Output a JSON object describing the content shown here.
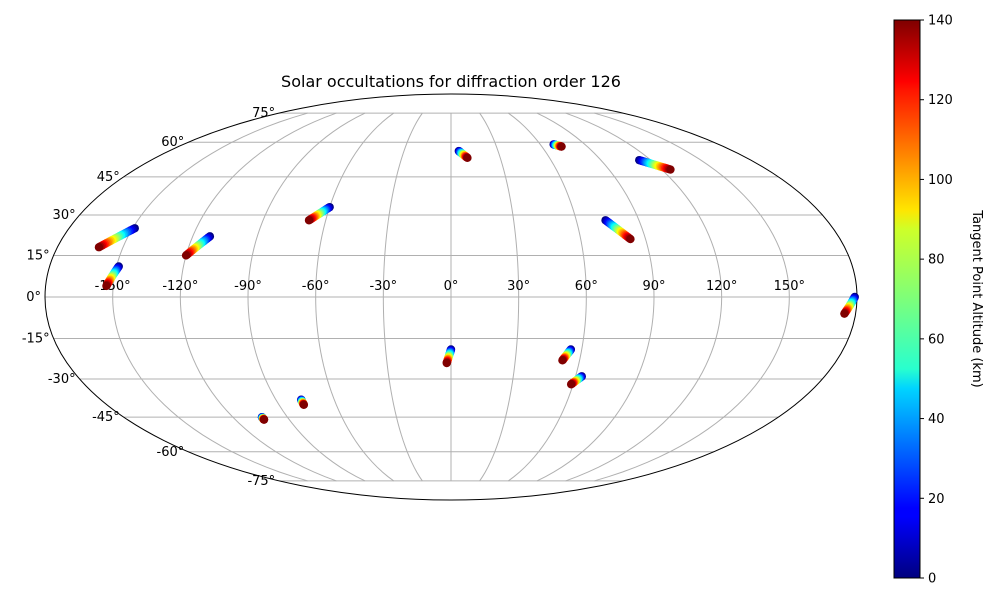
{
  "chart_data": {
    "type": "scatter",
    "projection": "mollweide",
    "title": "Solar occultations for diffraction order 126",
    "xlabel": "",
    "ylabel": "",
    "grid": true,
    "x_tick_labels": [
      "-150°",
      "-120°",
      "-90°",
      "-60°",
      "-30°",
      "0°",
      "30°",
      "60°",
      "90°",
      "120°",
      "150°"
    ],
    "y_tick_labels": [
      "-75°",
      "-60°",
      "-45°",
      "-30°",
      "-15°",
      "0°",
      "15°",
      "30°",
      "45°",
      "60°",
      "75°"
    ],
    "colorbar": {
      "label": "Tangent Point Altitude (km)",
      "colormap": "jet",
      "range": [
        0,
        140
      ],
      "ticks": [
        "0",
        "20",
        "40",
        "60",
        "80",
        "100",
        "120",
        "140"
      ]
    },
    "tracks": [
      {
        "lon_start": -149,
        "lat_start": 25,
        "lon_end": -161,
        "lat_end": 18,
        "alt_range": [
          0,
          140
        ]
      },
      {
        "lon_start": -149,
        "lat_start": 11,
        "lon_end": -153,
        "lat_end": 4,
        "alt_range": [
          0,
          140
        ]
      },
      {
        "lon_start": -112,
        "lat_start": 22,
        "lon_end": -120,
        "lat_end": 15,
        "alt_range": [
          0,
          140
        ]
      },
      {
        "lon_start": -60,
        "lat_start": 33,
        "lon_end": -68,
        "lat_end": 28,
        "alt_range": [
          0,
          140
        ]
      },
      {
        "lon_start": 5,
        "lat_start": 56,
        "lon_end": 10,
        "lat_end": 53,
        "alt_range": [
          0,
          140
        ]
      },
      {
        "lon_start": 69,
        "lat_start": 59,
        "lon_end": 73,
        "lat_end": 58,
        "alt_range": [
          0,
          140
        ]
      },
      {
        "lon_start": 113,
        "lat_start": 52,
        "lon_end": 125,
        "lat_end": 48,
        "alt_range": [
          0,
          140
        ]
      },
      {
        "lon_start": 74,
        "lat_start": 28,
        "lon_end": 83,
        "lat_end": 21,
        "alt_range": [
          0,
          140
        ]
      },
      {
        "lon_start": 179,
        "lat_start": 0,
        "lon_end": 175,
        "lat_end": -6,
        "alt_range": [
          0,
          140
        ]
      },
      {
        "lon_start": 0,
        "lat_start": -19,
        "lon_end": -2,
        "lat_end": -24,
        "alt_range": [
          0,
          140
        ]
      },
      {
        "lon_start": 55,
        "lat_start": -19,
        "lon_end": 52,
        "lat_end": -23,
        "alt_range": [
          0,
          140
        ]
      },
      {
        "lon_start": 63,
        "lat_start": -29,
        "lon_end": 59,
        "lat_end": -32,
        "alt_range": [
          0,
          140
        ]
      },
      {
        "lon_start": -77,
        "lat_start": -38,
        "lon_end": -77,
        "lat_end": -40,
        "alt_range": [
          0,
          140
        ]
      },
      {
        "lon_start": -104,
        "lat_start": -45,
        "lon_end": -104,
        "lat_end": -46,
        "alt_range": [
          0,
          140
        ]
      }
    ]
  }
}
